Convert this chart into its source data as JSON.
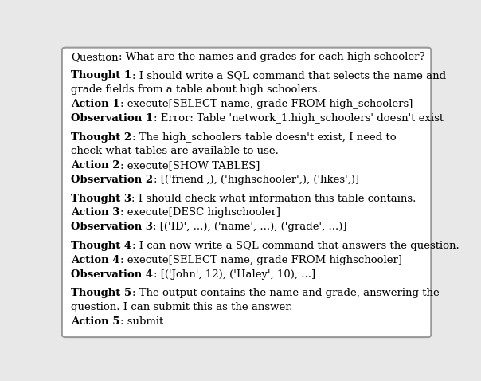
{
  "background_color": "#e8e8e8",
  "box_color": "#ffffff",
  "border_color": "#999999",
  "text_color": "#000000",
  "font_size": 9.5,
  "font_family": "DejaVu Serif",
  "lines": [
    {
      "parts": [
        {
          "text": "Question",
          "bold": false
        },
        {
          "text": ": What are the names and grades for each high schooler?",
          "bold": false
        }
      ]
    },
    {
      "separator": true
    },
    {
      "parts": [
        {
          "text": "Thought 1",
          "bold": true
        },
        {
          "text": ": I should write a SQL command that selects the name and",
          "bold": false
        }
      ]
    },
    {
      "parts": [
        {
          "text": "grade fields from a table about high schoolers.",
          "bold": false,
          "indent": false
        }
      ]
    },
    {
      "parts": [
        {
          "text": "Action 1",
          "bold": true
        },
        {
          "text": ": execute[SELECT name, grade FROM high_schoolers]",
          "bold": false
        }
      ]
    },
    {
      "parts": [
        {
          "text": "Observation 1",
          "bold": true
        },
        {
          "text": ": Error: Table 'network_1.high_schoolers' doesn't exist",
          "bold": false
        }
      ]
    },
    {
      "separator": true
    },
    {
      "parts": [
        {
          "text": "Thought 2",
          "bold": true
        },
        {
          "text": ": The high_schoolers table doesn't exist, I need to",
          "bold": false
        }
      ]
    },
    {
      "parts": [
        {
          "text": "check what tables are available to use.",
          "bold": false
        }
      ]
    },
    {
      "parts": [
        {
          "text": "Action 2",
          "bold": true
        },
        {
          "text": ": execute[SHOW TABLES]",
          "bold": false
        }
      ]
    },
    {
      "parts": [
        {
          "text": "Observation 2",
          "bold": true
        },
        {
          "text": ": [('friend',), ('highschooler',), ('likes',)]",
          "bold": false
        }
      ]
    },
    {
      "separator": true
    },
    {
      "parts": [
        {
          "text": "Thought 3",
          "bold": true
        },
        {
          "text": ": I should check what information this table contains.",
          "bold": false
        }
      ]
    },
    {
      "parts": [
        {
          "text": "Action 3",
          "bold": true
        },
        {
          "text": ": execute[DESC highschooler]",
          "bold": false
        }
      ]
    },
    {
      "parts": [
        {
          "text": "Observation 3",
          "bold": true
        },
        {
          "text": ": [('ID', ...), ('name', ...), ('grade', ...)]",
          "bold": false
        }
      ]
    },
    {
      "separator": true
    },
    {
      "parts": [
        {
          "text": "Thought 4",
          "bold": true
        },
        {
          "text": ": I can now write a SQL command that answers the question.",
          "bold": false
        }
      ]
    },
    {
      "parts": [
        {
          "text": "Action 4",
          "bold": true
        },
        {
          "text": ": execute[SELECT name, grade FROM highschooler]",
          "bold": false
        }
      ]
    },
    {
      "parts": [
        {
          "text": "Observation 4",
          "bold": true
        },
        {
          "text": ": [('John', 12), ('Haley', 10), ...]",
          "bold": false
        }
      ]
    },
    {
      "separator": true
    },
    {
      "parts": [
        {
          "text": "Thought 5",
          "bold": true
        },
        {
          "text": ": The output contains the name and grade, answering the",
          "bold": false
        }
      ]
    },
    {
      "parts": [
        {
          "text": "question. I can submit this as the answer.",
          "bold": false
        }
      ]
    },
    {
      "parts": [
        {
          "text": "Action 5",
          "bold": true
        },
        {
          "text": ": submit",
          "bold": false
        }
      ]
    }
  ]
}
